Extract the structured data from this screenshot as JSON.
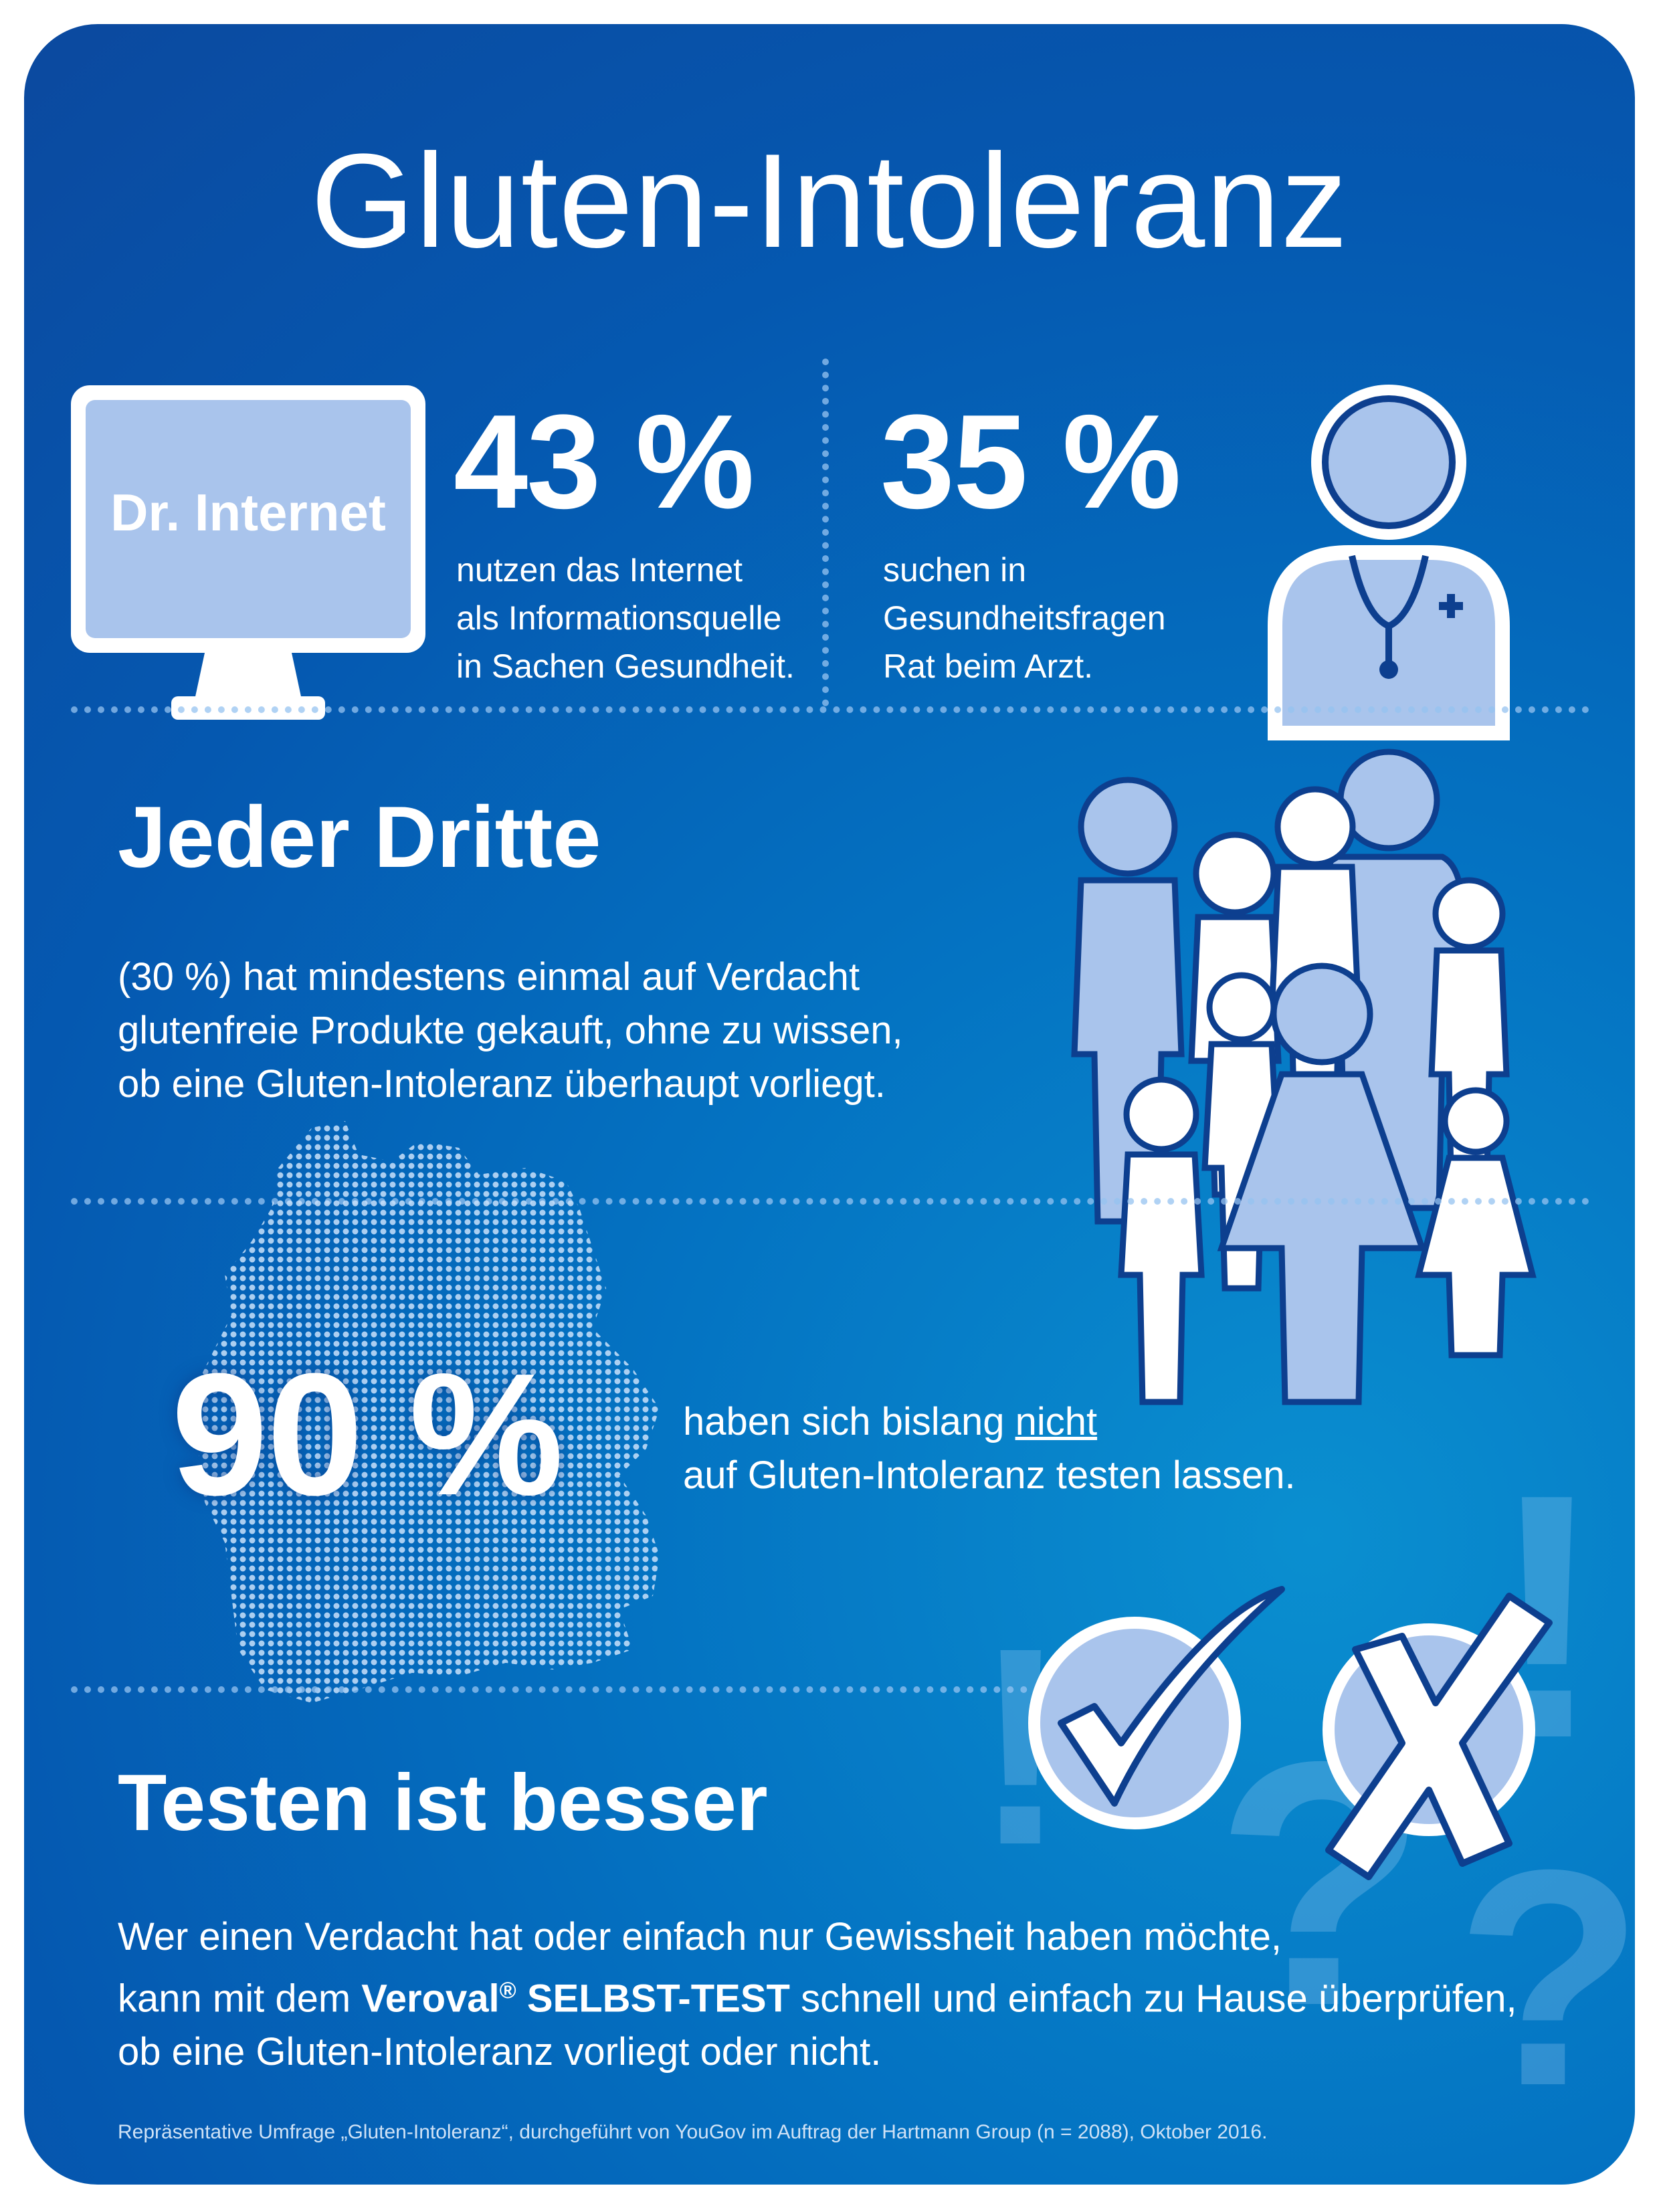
{
  "title": "Gluten-Intoleranz",
  "stat_internet": {
    "monitor_label": "Dr. Internet",
    "percent": "43 %",
    "lines": [
      "nutzen das Internet",
      "als Informationsquelle",
      "in Sachen Gesundheit."
    ],
    "icon": "monitor-icon"
  },
  "stat_doctor": {
    "percent": "35 %",
    "lines": [
      "suchen in",
      "Gesundheitsfragen",
      "Rat beim Arzt."
    ],
    "icon": "doctor-icon"
  },
  "third": {
    "heading": "Jeder Dritte",
    "lines": [
      "(30 %) hat mindestens einmal auf Verdacht",
      "glutenfreie Produkte gekauft, ohne zu wissen,",
      "ob eine Gluten-Intoleranz überhaupt vorliegt."
    ],
    "icon": "people-group-icon"
  },
  "ninety": {
    "percent": "90 %",
    "line1_prefix": "haben sich bislang ",
    "line1_emph": "nicht",
    "line2": "auf Gluten-Intoleranz testen lassen.",
    "icon": "germany-map-icon"
  },
  "testing": {
    "heading": "Testen ist besser",
    "line1": "Wer einen Verdacht hat oder einfach nur Gewissheit haben möchte,",
    "line2_prefix": "kann mit dem ",
    "line2_brand": "Veroval",
    "line2_reg": "®",
    "line2_product": " SELBST-TEST",
    "line2_suffix": " schnell und einfach zu Hause überprüfen,",
    "line3": "ob eine Gluten-Intoleranz vorliegt oder nicht.",
    "icons": [
      "checkmark-icon",
      "cross-icon",
      "question-mark-icon",
      "exclamation-mark-icon"
    ]
  },
  "footnote": "Repräsentative Umfrage „Gluten-Intoleranz“, durchgeführt von YouGov im Auftrag der Hartmann Group (n = 2088), Oktober 2016.",
  "colors": {
    "background_dark": "#0b4aa0",
    "background_light": "#0a8fd0",
    "icon_fill": "#a9c4ec",
    "icon_outline": "#0d3f8f",
    "text": "#ffffff"
  }
}
